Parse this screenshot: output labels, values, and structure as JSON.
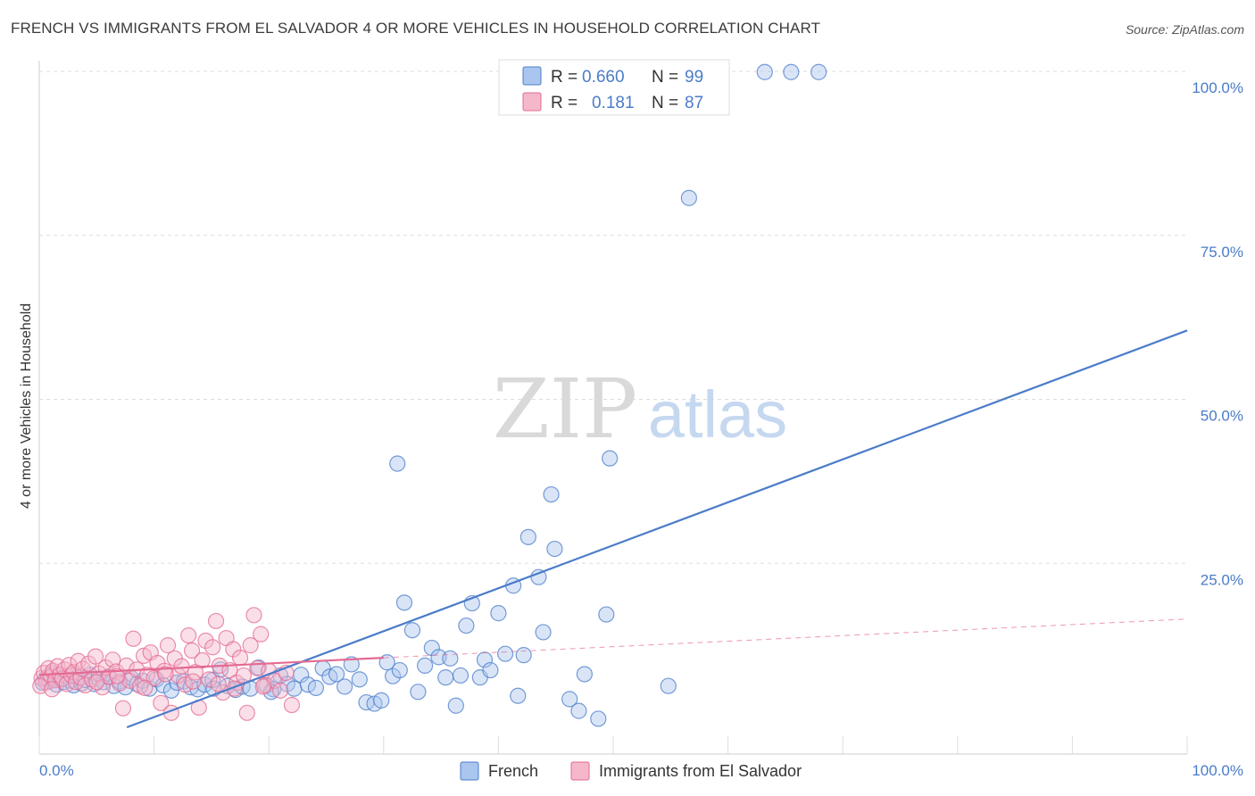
{
  "header": {
    "title": "FRENCH VS IMMIGRANTS FROM EL SALVADOR 4 OR MORE VEHICLES IN HOUSEHOLD CORRELATION CHART",
    "source": "Source: ZipAtlas.com"
  },
  "watermark": {
    "zip": "ZIP",
    "atlas": "atlas"
  },
  "colors": {
    "french": "#4a7cc9",
    "french_fill": "#aac6ee",
    "salvador": "#e46a92",
    "salvador_fill": "#f5b8cb",
    "tick_text": "#4a7cc9",
    "grid": "#dddddd"
  },
  "stats_legend": {
    "r_label": "R =",
    "n_label": "N =",
    "rows": [
      {
        "series": "French",
        "r": "0.660",
        "n": "99"
      },
      {
        "series": "Immigrants from El Salvador",
        "r": "0.181",
        "n": "87"
      }
    ]
  },
  "chart_data": {
    "type": "scatter",
    "title": "FRENCH VS IMMIGRANTS FROM EL SALVADOR 4 OR MORE VEHICLES IN HOUSEHOLD CORRELATION CHART",
    "ylabel": "4 or more Vehicles in Household",
    "xlabel": "",
    "xlim": [
      0,
      100
    ],
    "ylim": [
      0,
      100
    ],
    "x_ticks": [
      "0.0%",
      "100.0%"
    ],
    "y_ticks": [
      {
        "value": 100,
        "label": "100.0%"
      },
      {
        "value": 75,
        "label": "75.0%"
      },
      {
        "value": 50,
        "label": "50.0%"
      },
      {
        "value": 25,
        "label": "25.0%"
      }
    ],
    "grid": true,
    "legend_position": "bottom-center",
    "series": [
      {
        "name": "French",
        "color": "#4a7cc9",
        "points": [
          [
            0.3,
            6.8
          ],
          [
            0.6,
            7.5
          ],
          [
            0.9,
            7.0
          ],
          [
            1.2,
            8.2
          ],
          [
            1.5,
            6.5
          ],
          [
            1.8,
            7.3
          ],
          [
            2.1,
            6.9
          ],
          [
            2.4,
            7.8
          ],
          [
            2.7,
            7.1
          ],
          [
            3.0,
            6.4
          ],
          [
            3.3,
            7.6
          ],
          [
            3.7,
            6.7
          ],
          [
            4.0,
            7.2
          ],
          [
            4.4,
            8.0
          ],
          [
            4.8,
            6.6
          ],
          [
            5.2,
            7.4
          ],
          [
            5.6,
            6.9
          ],
          [
            6.0,
            7.7
          ],
          [
            6.5,
            6.3
          ],
          [
            7.0,
            7.0
          ],
          [
            7.5,
            6.1
          ],
          [
            8.0,
            7.5
          ],
          [
            8.5,
            6.6
          ],
          [
            9.0,
            7.1
          ],
          [
            9.6,
            5.9
          ],
          [
            10.2,
            7.3
          ],
          [
            10.8,
            6.4
          ],
          [
            11.5,
            5.6
          ],
          [
            12.0,
            6.8
          ],
          [
            12.6,
            7.0
          ],
          [
            13.2,
            6.1
          ],
          [
            13.8,
            5.8
          ],
          [
            14.4,
            6.5
          ],
          [
            15.1,
            7.2
          ],
          [
            15.8,
            8.8
          ],
          [
            16.4,
            6.3
          ],
          [
            17.1,
            5.7
          ],
          [
            17.7,
            6.2
          ],
          [
            18.4,
            5.9
          ],
          [
            19.1,
            9.1
          ],
          [
            19.8,
            6.4
          ],
          [
            20.4,
            5.8
          ],
          [
            21.0,
            7.9
          ],
          [
            21.6,
            6.6
          ],
          [
            22.2,
            5.9
          ],
          [
            22.8,
            8.0
          ],
          [
            23.4,
            6.5
          ],
          [
            24.1,
            6.0
          ],
          [
            24.7,
            9.0
          ],
          [
            25.3,
            7.7
          ],
          [
            25.9,
            8.1
          ],
          [
            26.6,
            6.2
          ],
          [
            27.2,
            9.6
          ],
          [
            27.9,
            7.3
          ],
          [
            28.5,
            3.8
          ],
          [
            29.2,
            3.6
          ],
          [
            29.8,
            4.1
          ],
          [
            30.3,
            9.9
          ],
          [
            30.8,
            7.8
          ],
          [
            31.4,
            8.7
          ],
          [
            31.8,
            19.0
          ],
          [
            32.5,
            14.8
          ],
          [
            33.0,
            5.4
          ],
          [
            33.6,
            9.4
          ],
          [
            34.2,
            12.1
          ],
          [
            34.8,
            10.7
          ],
          [
            35.4,
            7.6
          ],
          [
            35.8,
            10.5
          ],
          [
            36.3,
            3.3
          ],
          [
            36.7,
            7.9
          ],
          [
            37.2,
            15.5
          ],
          [
            37.7,
            18.9
          ],
          [
            38.4,
            7.6
          ],
          [
            38.8,
            10.3
          ],
          [
            39.3,
            8.7
          ],
          [
            40.0,
            17.4
          ],
          [
            40.6,
            11.2
          ],
          [
            41.3,
            21.6
          ],
          [
            41.7,
            4.8
          ],
          [
            42.2,
            11.0
          ],
          [
            42.6,
            29.0
          ],
          [
            43.5,
            22.9
          ],
          [
            43.9,
            14.5
          ],
          [
            44.6,
            35.5
          ],
          [
            44.9,
            27.2
          ],
          [
            46.2,
            4.3
          ],
          [
            47.0,
            2.5
          ],
          [
            47.5,
            8.1
          ],
          [
            48.7,
            1.3
          ],
          [
            49.4,
            17.2
          ],
          [
            49.7,
            41.0
          ],
          [
            54.8,
            6.3
          ],
          [
            56.6,
            80.7
          ],
          [
            63.2,
            99.9
          ],
          [
            65.5,
            99.9
          ],
          [
            67.9,
            99.9
          ],
          [
            31.2,
            40.2
          ],
          [
            20.2,
            5.4
          ],
          [
            15.2,
            5.9
          ]
        ]
      },
      {
        "name": "Immigrants from El Salvador",
        "color": "#e46a92",
        "points": [
          [
            0.2,
            7.5
          ],
          [
            0.4,
            8.3
          ],
          [
            0.6,
            6.9
          ],
          [
            0.8,
            9.0
          ],
          [
            1.0,
            7.7
          ],
          [
            1.2,
            8.6
          ],
          [
            1.4,
            7.2
          ],
          [
            1.6,
            9.3
          ],
          [
            1.8,
            8.0
          ],
          [
            2.0,
            7.4
          ],
          [
            2.2,
            8.8
          ],
          [
            2.4,
            6.6
          ],
          [
            2.6,
            9.5
          ],
          [
            2.8,
            7.9
          ],
          [
            3.0,
            8.4
          ],
          [
            3.2,
            6.9
          ],
          [
            3.4,
            10.1
          ],
          [
            3.6,
            7.6
          ],
          [
            3.8,
            8.9
          ],
          [
            4.0,
            6.4
          ],
          [
            4.3,
            9.7
          ],
          [
            4.6,
            7.3
          ],
          [
            4.9,
            10.8
          ],
          [
            5.2,
            8.2
          ],
          [
            5.5,
            6.1
          ],
          [
            5.8,
            9.1
          ],
          [
            6.1,
            7.7
          ],
          [
            6.4,
            10.3
          ],
          [
            6.7,
            8.5
          ],
          [
            7.0,
            6.7
          ],
          [
            7.3,
            2.9
          ],
          [
            7.6,
            9.4
          ],
          [
            7.9,
            7.1
          ],
          [
            8.2,
            13.5
          ],
          [
            8.5,
            8.8
          ],
          [
            8.8,
            6.3
          ],
          [
            9.1,
            10.9
          ],
          [
            9.4,
            8.0
          ],
          [
            9.7,
            11.4
          ],
          [
            10.0,
            7.5
          ],
          [
            10.3,
            9.8
          ],
          [
            10.6,
            3.7
          ],
          [
            10.9,
            8.6
          ],
          [
            11.2,
            12.5
          ],
          [
            11.5,
            2.2
          ],
          [
            11.8,
            10.5
          ],
          [
            12.1,
            7.9
          ],
          [
            12.4,
            9.3
          ],
          [
            12.7,
            6.5
          ],
          [
            13.0,
            14.0
          ],
          [
            13.3,
            11.7
          ],
          [
            13.6,
            8.4
          ],
          [
            13.9,
            3.0
          ],
          [
            14.2,
            10.2
          ],
          [
            14.5,
            13.2
          ],
          [
            14.8,
            7.3
          ],
          [
            15.1,
            12.2
          ],
          [
            15.4,
            16.2
          ],
          [
            15.7,
            9.4
          ],
          [
            16.0,
            5.3
          ],
          [
            16.3,
            13.6
          ],
          [
            16.6,
            8.7
          ],
          [
            16.9,
            11.9
          ],
          [
            17.2,
            6.8
          ],
          [
            17.5,
            10.6
          ],
          [
            17.8,
            7.9
          ],
          [
            18.1,
            2.2
          ],
          [
            18.4,
            12.5
          ],
          [
            18.7,
            17.1
          ],
          [
            19.0,
            9.0
          ],
          [
            19.3,
            14.2
          ],
          [
            19.6,
            6.4
          ],
          [
            20.0,
            8.6
          ],
          [
            20.5,
            7.1
          ],
          [
            21.0,
            5.6
          ],
          [
            21.5,
            8.3
          ],
          [
            22.0,
            3.4
          ],
          [
            5.0,
            6.9
          ],
          [
            6.8,
            7.8
          ],
          [
            9.2,
            6.0
          ],
          [
            11.0,
            8.1
          ],
          [
            13.4,
            7.0
          ],
          [
            15.6,
            6.6
          ],
          [
            17.0,
            5.9
          ],
          [
            19.5,
            6.2
          ],
          [
            0.1,
            6.3
          ],
          [
            1.1,
            5.8
          ]
        ]
      }
    ],
    "trendlines": [
      {
        "series": "French",
        "x": [
          0,
          100
        ],
        "y": [
          -5.0,
          60.5
        ],
        "style": "solid"
      },
      {
        "series": "Immigrants from El Salvador",
        "x": [
          0,
          30
        ],
        "y": [
          8.0,
          10.6
        ],
        "style": "solid"
      },
      {
        "series": "Immigrants from El Salvador",
        "x": [
          30,
          100
        ],
        "y": [
          10.6,
          16.5
        ],
        "style": "dashed"
      }
    ]
  },
  "bottom_legend": [
    {
      "label": "French"
    },
    {
      "label": "Immigrants from El Salvador"
    }
  ]
}
